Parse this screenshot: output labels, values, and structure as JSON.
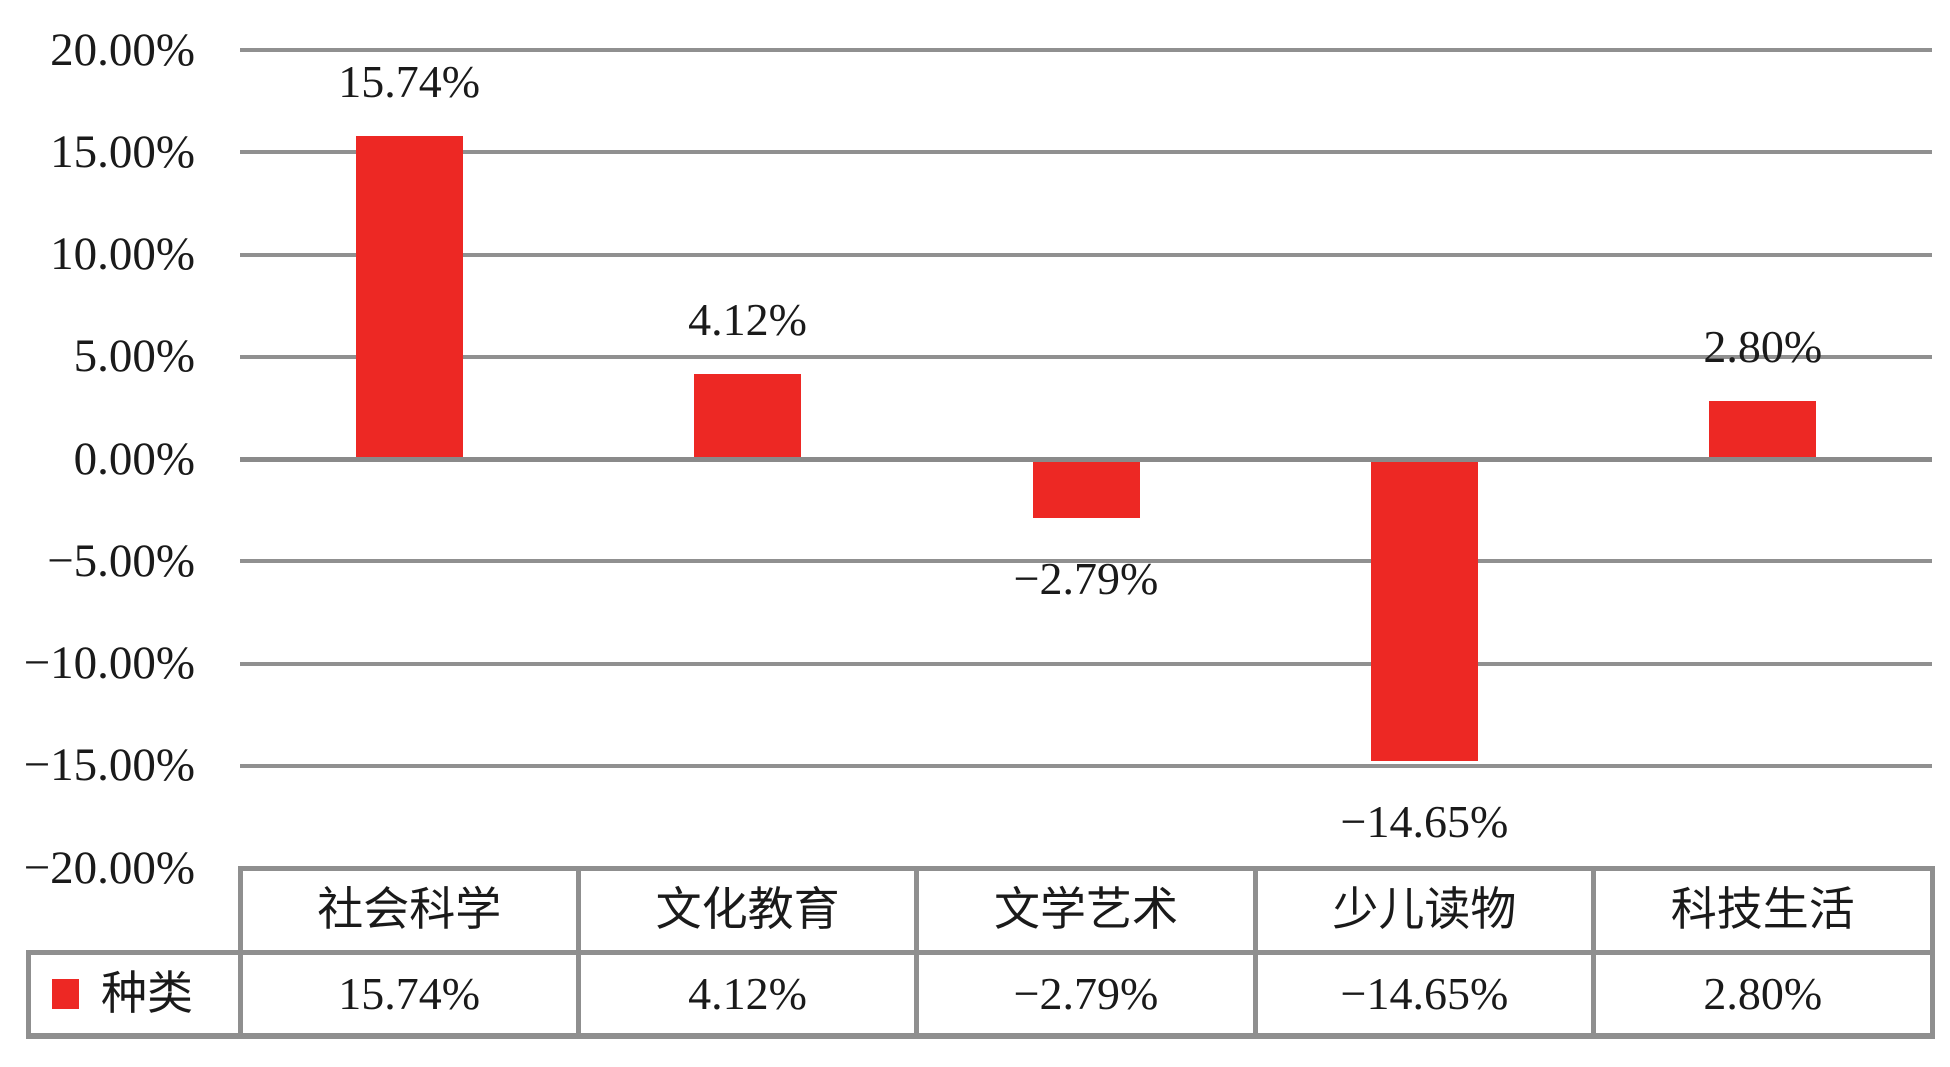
{
  "chart_data": {
    "type": "bar",
    "categories": [
      "社会科学",
      "文化教育",
      "文学艺术",
      "少儿读物",
      "科技生活"
    ],
    "series": [
      {
        "name": "种类",
        "values": [
          15.74,
          4.12,
          -2.79,
          -14.65,
          2.8
        ]
      }
    ],
    "data_labels": [
      "15.74%",
      "4.12%",
      "−2.79%",
      "−14.65%",
      "2.80%"
    ],
    "table_values": [
      "15.74%",
      "4.12%",
      "−2.79%",
      "−14.65%",
      "2.80%"
    ],
    "yticks": [
      "20.00%",
      "15.00%",
      "10.00%",
      "5.00%",
      "0.00%",
      "−5.00%",
      "−10.00%",
      "−15.00%",
      "−20.00%"
    ],
    "ylim": [
      -20,
      20
    ],
    "ytick_step": 5,
    "grid": true,
    "title": "",
    "xlabel": "",
    "ylabel": "",
    "legend": {
      "name": "种类",
      "position": "table-left"
    },
    "colors": {
      "bar": "#ed2824",
      "gridline": "#909090",
      "zero_axis": "#8a8a8a",
      "table_border": "#8f8f8f",
      "text": "#1a1a1a",
      "background": "#ffffff"
    }
  }
}
